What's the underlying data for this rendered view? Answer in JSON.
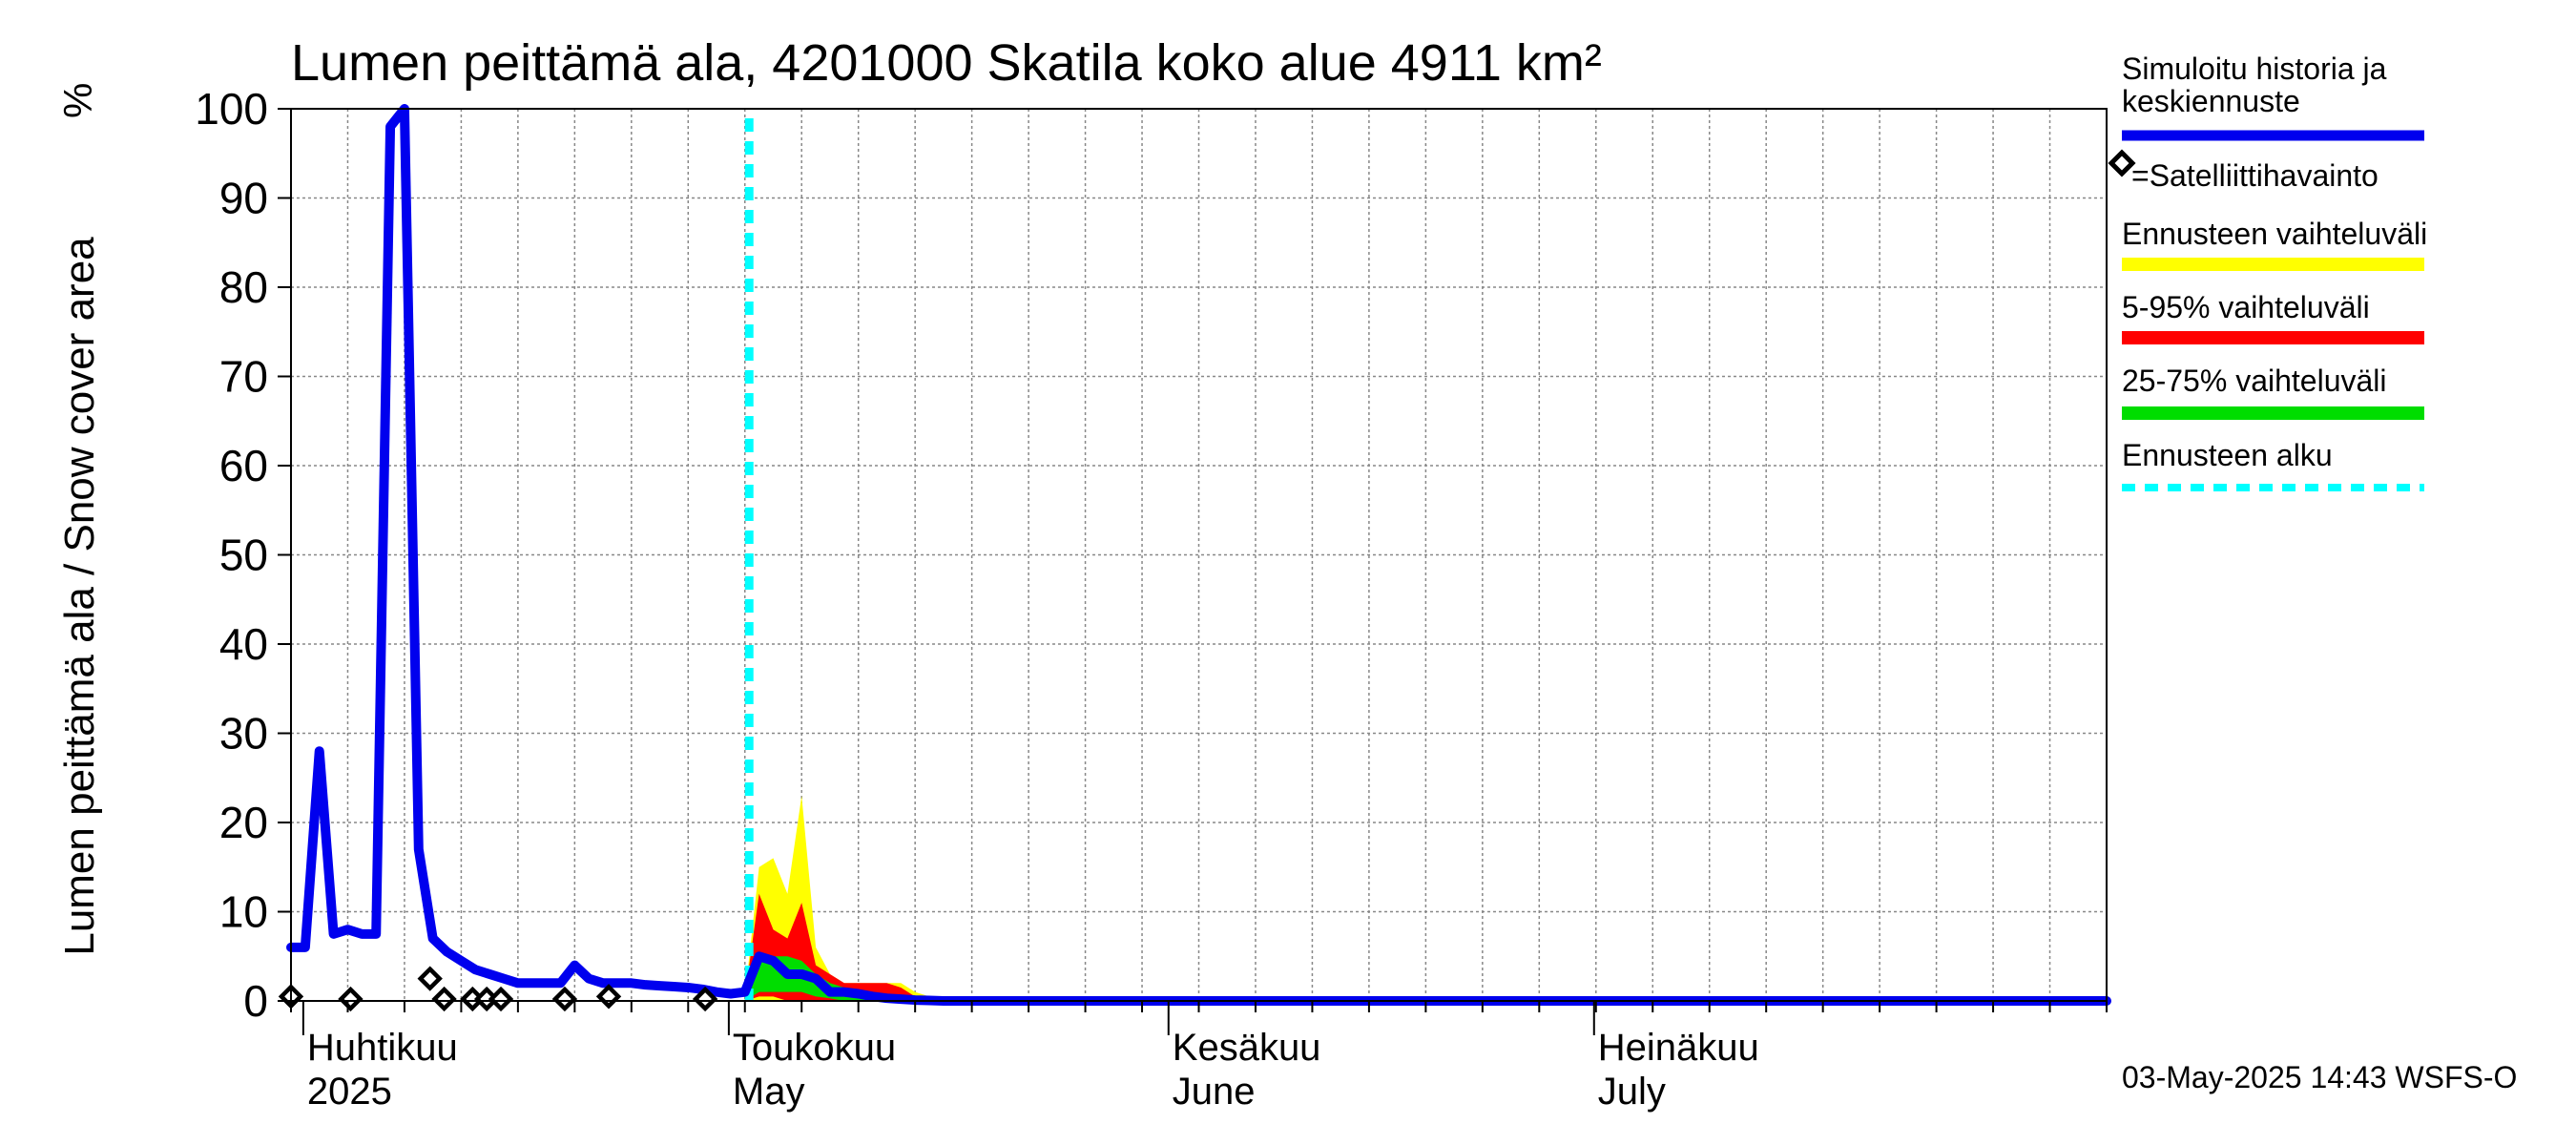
{
  "colors": {
    "history": "#0000ee",
    "forecast_range": "#ffff00",
    "p5_95": "#ff0000",
    "p25_75": "#00dd00",
    "forecast_start": "#00ffff",
    "grid": "#888888"
  },
  "chart_data": {
    "type": "area",
    "title": "Lumen peittämä ala, 4201000 Skatila koko alue 4911 km²",
    "ylabel": "Lumen peittämä ala / Snow cover area",
    "yunit": "%",
    "ylim": [
      0,
      100
    ],
    "yticks": [
      0,
      10,
      20,
      30,
      40,
      50,
      60,
      70,
      80,
      90,
      100
    ],
    "xlim_day": [
      0,
      128
    ],
    "x_unit": "days since 2025-03-31",
    "month_labels": [
      {
        "fi": "Huhtikuu",
        "en": "2025",
        "day": 1
      },
      {
        "fi": "Toukokuu",
        "en": "May",
        "day": 31
      },
      {
        "fi": "Kesäkuu",
        "en": "June",
        "day": 62
      },
      {
        "fi": "Heinäkuu",
        "en": "July",
        "day": 92
      }
    ],
    "forecast_start_day": 32.3,
    "history": {
      "day": [
        0,
        1,
        2,
        3,
        4,
        5,
        6,
        7,
        8,
        9,
        10,
        11,
        12,
        13,
        14,
        15,
        16,
        17,
        18,
        19,
        20,
        21,
        22,
        23,
        24,
        25,
        26,
        27,
        28,
        29,
        30,
        31,
        32,
        33,
        34,
        35,
        36,
        37,
        38,
        39,
        40,
        41,
        42,
        43,
        44,
        45,
        46,
        128
      ],
      "value": [
        6,
        6,
        28,
        7.5,
        8,
        7.5,
        7.5,
        98,
        100,
        17,
        7,
        5.5,
        4.5,
        3.5,
        3,
        2.5,
        2,
        2,
        2,
        2,
        4,
        2.5,
        2,
        2,
        2,
        1.8,
        1.7,
        1.6,
        1.5,
        1.3,
        1.0,
        0.8,
        1.0,
        5,
        4.5,
        3,
        3,
        2.5,
        1,
        1,
        0.8,
        0.5,
        0.3,
        0.2,
        0.1,
        0.05,
        0,
        0
      ]
    },
    "forecast_range": {
      "day": [
        32,
        33,
        34,
        35,
        36,
        37,
        38,
        39,
        40,
        41,
        42,
        43,
        44,
        45,
        46,
        47,
        48
      ],
      "low": [
        0,
        0,
        0,
        0,
        0,
        0,
        0,
        0,
        0,
        0,
        0,
        0,
        0,
        0,
        0,
        0,
        0
      ],
      "high": [
        0.5,
        15,
        16,
        12,
        23,
        6,
        3,
        2,
        2,
        2,
        2,
        2,
        1,
        0.5,
        0.3,
        0.1,
        0
      ]
    },
    "p5_95": {
      "day": [
        32,
        33,
        34,
        35,
        36,
        37,
        38,
        39,
        40,
        41,
        42,
        43,
        44,
        45,
        46,
        47
      ],
      "low": [
        0,
        0.5,
        0.5,
        0,
        0,
        0,
        0,
        0,
        0,
        0,
        0,
        0,
        0,
        0,
        0,
        0
      ],
      "high": [
        0.5,
        12,
        8,
        7,
        11,
        4,
        3,
        2,
        2,
        2,
        2,
        1.5,
        0.5,
        0.3,
        0.1,
        0
      ]
    },
    "p25_75": {
      "day": [
        32,
        33,
        34,
        35,
        36,
        37,
        38,
        39,
        40,
        41,
        42,
        43,
        44,
        45
      ],
      "low": [
        0,
        1,
        1,
        1,
        1,
        0.5,
        0.3,
        0,
        0,
        0,
        0,
        0,
        0,
        0
      ],
      "high": [
        0.5,
        5,
        5,
        5,
        4.5,
        3,
        2,
        1.5,
        1,
        0.8,
        0.5,
        0.3,
        0.1,
        0
      ]
    },
    "satellite": {
      "day": [
        0,
        4.2,
        9.8,
        10.8,
        12.8,
        13.8,
        14.8,
        19.3,
        22.4,
        29.2
      ],
      "value": [
        0.5,
        0,
        2.5,
        0,
        0,
        0,
        0,
        0,
        0.5,
        0
      ]
    },
    "legend": {
      "history": "Simuloitu historia ja keskiennuste",
      "history_line1": "Simuloitu historia ja",
      "history_line2": "keskiennuste",
      "satellite": "=Satelliittihavainto",
      "forecast_range": "Ennusteen vaihteluväli",
      "p5_95": "5-95% vaihteluväli",
      "p25_75": "25-75% vaihteluväli",
      "forecast_start": "Ennusteen alku"
    },
    "timestamp": "03-May-2025 14:43 WSFS-O"
  }
}
